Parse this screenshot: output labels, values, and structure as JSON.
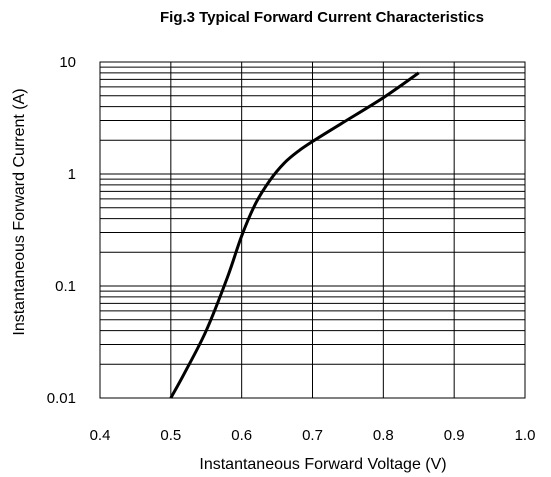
{
  "chart_data": {
    "type": "line",
    "title": "Fig.3 Typical Forward Current Characteristics",
    "xlabel": "Instantaneous Forward Voltage (V)",
    "ylabel": "Instantaneous Forward Current (A)",
    "xscale": "linear",
    "yscale": "log",
    "xlim": [
      0.4,
      1.0
    ],
    "ylim": [
      0.01,
      10
    ],
    "x_ticks": [
      "0.4",
      "0.5",
      "0.6",
      "0.7",
      "0.8",
      "0.9",
      "1.0"
    ],
    "y_ticks": [
      "0.01",
      "0.1",
      "1",
      "10"
    ],
    "grid": true,
    "legend": "none",
    "series": [
      {
        "x": [
          0.5,
          0.52,
          0.55,
          0.58,
          0.6,
          0.62,
          0.64,
          0.66,
          0.68,
          0.7,
          0.74,
          0.8,
          0.85
        ],
        "y": [
          0.01,
          0.017,
          0.04,
          0.12,
          0.28,
          0.55,
          0.88,
          1.25,
          1.6,
          1.95,
          2.8,
          4.8,
          8.0
        ],
        "color": "#000000"
      }
    ]
  }
}
